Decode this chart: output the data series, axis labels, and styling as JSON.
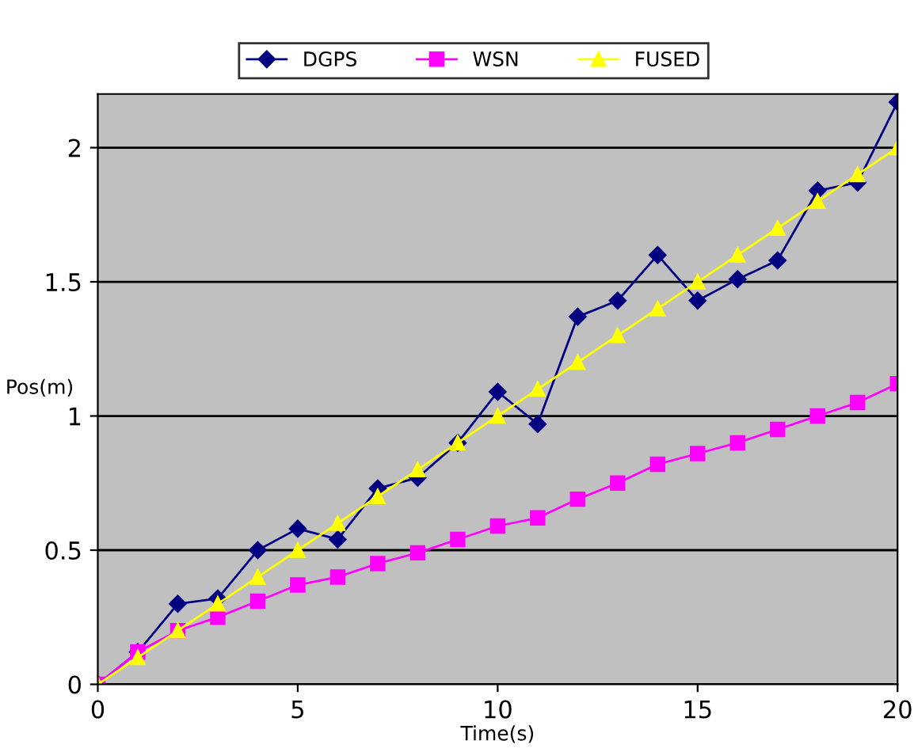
{
  "chart_data": {
    "type": "line",
    "xlabel": "Time(s)",
    "ylabel": "Pos(m)",
    "x": [
      0,
      1,
      2,
      3,
      4,
      5,
      6,
      7,
      8,
      9,
      10,
      11,
      12,
      13,
      14,
      15,
      16,
      17,
      18,
      19,
      20
    ],
    "series": [
      {
        "name": "DGPS",
        "color": "#000080",
        "marker": "diamond",
        "values": [
          0,
          0.12,
          0.3,
          0.32,
          0.5,
          0.58,
          0.54,
          0.73,
          0.77,
          0.9,
          1.09,
          0.97,
          1.37,
          1.43,
          1.6,
          1.43,
          1.51,
          1.58,
          1.84,
          1.87,
          2.17
        ]
      },
      {
        "name": "WSN",
        "color": "#ff00ff",
        "marker": "square",
        "values": [
          0,
          0.12,
          0.2,
          0.25,
          0.31,
          0.37,
          0.4,
          0.45,
          0.49,
          0.54,
          0.59,
          0.62,
          0.69,
          0.75,
          0.82,
          0.86,
          0.9,
          0.95,
          1.0,
          1.05,
          1.12
        ]
      },
      {
        "name": "FUSED",
        "color": "#ffff00",
        "marker": "triangle",
        "values": [
          0,
          0.1,
          0.2,
          0.3,
          0.4,
          0.5,
          0.6,
          0.7,
          0.8,
          0.9,
          1.0,
          1.1,
          1.2,
          1.3,
          1.4,
          1.5,
          1.6,
          1.7,
          1.8,
          1.9,
          2.0
        ]
      }
    ],
    "xlim": [
      0,
      20
    ],
    "ylim": [
      0,
      2.2
    ],
    "xticks": [
      0,
      5,
      10,
      15,
      20
    ],
    "yticks": [
      0,
      0.5,
      1,
      1.5,
      2
    ],
    "grid": "y",
    "legend": "top"
  }
}
